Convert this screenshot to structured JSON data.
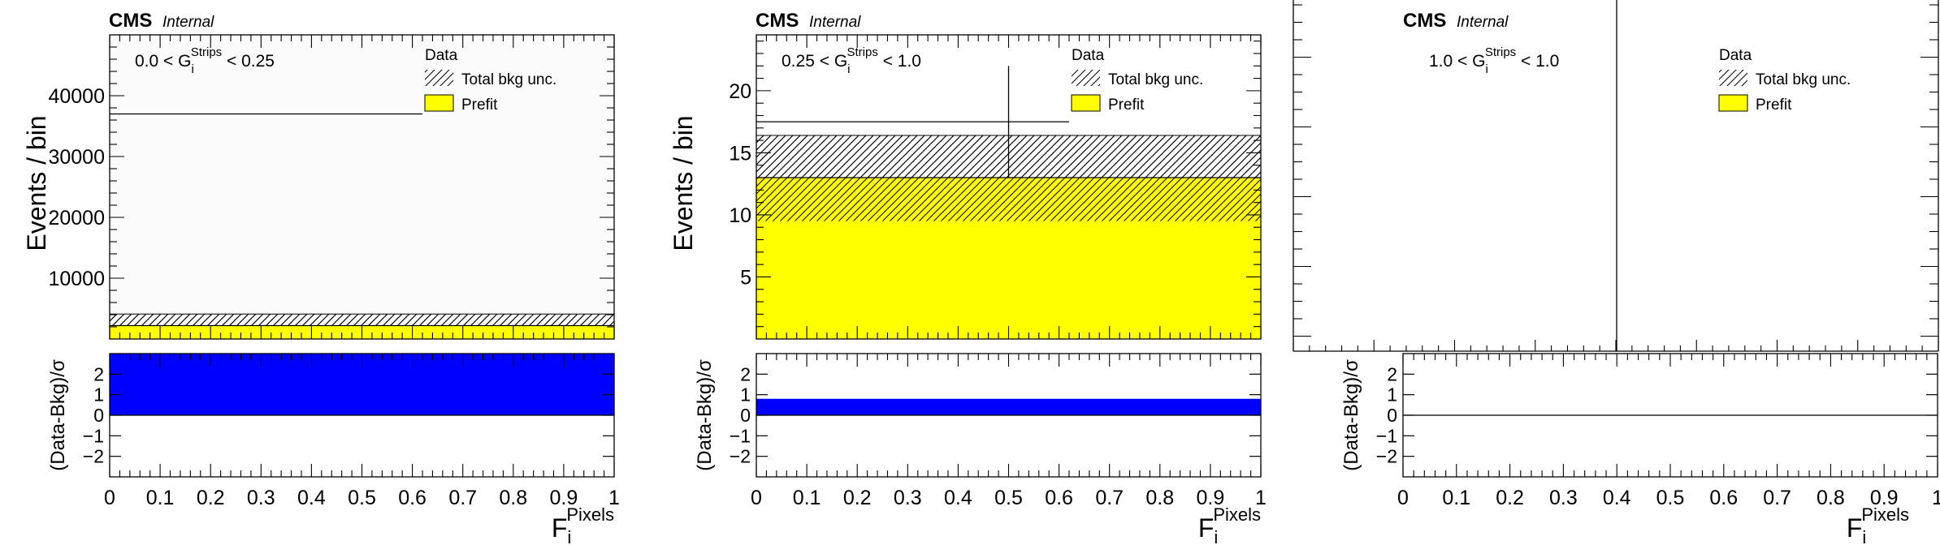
{
  "chart_data": [
    {
      "type": "bar",
      "cms_label": "CMS",
      "cms_sublabel": "Internal",
      "region": {
        "lower": "0.0",
        "upper": "0.25",
        "var": "G",
        "sub": "i",
        "sup": "Strips"
      },
      "ylabel": "Events / bin",
      "ratio_ylabel": "(Data-Bkg)/σ",
      "xlabel": {
        "main": "F",
        "sub": "i",
        "sup": "Pixels"
      },
      "xlim": [
        0,
        1
      ],
      "ylim": [
        0,
        50000
      ],
      "ratio_ylim": [
        -3,
        3
      ],
      "x_ticks": [
        "0",
        "0.1",
        "0.2",
        "0.3",
        "0.4",
        "0.5",
        "0.6",
        "0.7",
        "0.8",
        "0.9",
        "1"
      ],
      "y_ticks": [
        10000,
        20000,
        30000,
        40000
      ],
      "y_tick_labels": [
        "10000",
        "20000",
        "30000",
        "40000"
      ],
      "ratio_ticks": [
        -2,
        -1,
        0,
        1,
        2
      ],
      "ratio_tick_labels": [
        "−2",
        "−1",
        "0",
        "1",
        "2"
      ],
      "legend": {
        "data": "Data",
        "unc": "Total bkg unc.",
        "prefit": "Prefit"
      },
      "prefit": 2200,
      "unc_low": 2200,
      "unc_high": 4100,
      "data_y": 37000,
      "data_x_end": 0.62,
      "data_err": 0,
      "ratio_value": 3.0,
      "colors": {
        "prefit": "#ffff00",
        "ratio": "#0000ff"
      }
    },
    {
      "type": "bar",
      "cms_label": "CMS",
      "cms_sublabel": "Internal",
      "region": {
        "lower": "0.25",
        "upper": "1.0",
        "var": "G",
        "sub": "i",
        "sup": "Strips"
      },
      "ylabel": "Events / bin",
      "ratio_ylabel": "(Data-Bkg)/σ",
      "xlabel": {
        "main": "F",
        "sub": "i",
        "sup": "Pixels"
      },
      "xlim": [
        0,
        1
      ],
      "ylim": [
        0,
        24.5
      ],
      "ratio_ylim": [
        -3,
        3
      ],
      "x_ticks": [
        "0",
        "0.1",
        "0.2",
        "0.3",
        "0.4",
        "0.5",
        "0.6",
        "0.7",
        "0.8",
        "0.9",
        "1"
      ],
      "y_ticks": [
        5,
        10,
        15,
        20
      ],
      "y_tick_labels": [
        "5",
        "10",
        "15",
        "20"
      ],
      "ratio_ticks": [
        -2,
        -1,
        0,
        1,
        2
      ],
      "ratio_tick_labels": [
        "−2",
        "−1",
        "0",
        "1",
        "2"
      ],
      "legend": {
        "data": "Data",
        "unc": "Total bkg unc.",
        "prefit": "Prefit"
      },
      "prefit": 13,
      "unc_low": 9.5,
      "unc_high": 16.4,
      "data_y": 17.5,
      "data_x_end": 0.62,
      "data_err": 4.5,
      "ratio_value": 0.8,
      "colors": {
        "prefit": "#ffff00",
        "ratio": "#0000ff"
      }
    },
    {
      "type": "bar",
      "cms_label": "CMS",
      "cms_sublabel": "Internal",
      "region": {
        "lower": "1.0",
        "upper": "1.0",
        "var": "G",
        "sub": "i",
        "sup": "Strips"
      },
      "ylabel": "",
      "ratio_ylabel": "(Data-Bkg)/σ",
      "xlabel": {
        "main": "F",
        "sub": "i",
        "sup": "Pixels"
      },
      "xlim": [
        0,
        1
      ],
      "ylim": [
        0,
        1
      ],
      "ratio_ylim": [
        -3,
        3
      ],
      "x_ticks": [
        "0",
        "0.1",
        "0.2",
        "0.3",
        "0.4",
        "0.5",
        "0.6",
        "0.7",
        "0.8",
        "0.9",
        "1"
      ],
      "y_ticks": [],
      "y_tick_labels": [],
      "ratio_ticks": [
        -2,
        -1,
        0,
        1,
        2
      ],
      "ratio_tick_labels": [
        "−2",
        "−1",
        "0",
        "1",
        "2"
      ],
      "legend": {
        "data": "Data",
        "unc": "Total bkg unc.",
        "prefit": "Prefit"
      },
      "prefit": 0,
      "unc_low": 0,
      "unc_high": 0,
      "data_y": 0,
      "data_x_end": 0,
      "data_err": 0,
      "ratio_value": 0,
      "colors": {
        "prefit": "#ffff00",
        "ratio": "#0000ff"
      }
    }
  ]
}
